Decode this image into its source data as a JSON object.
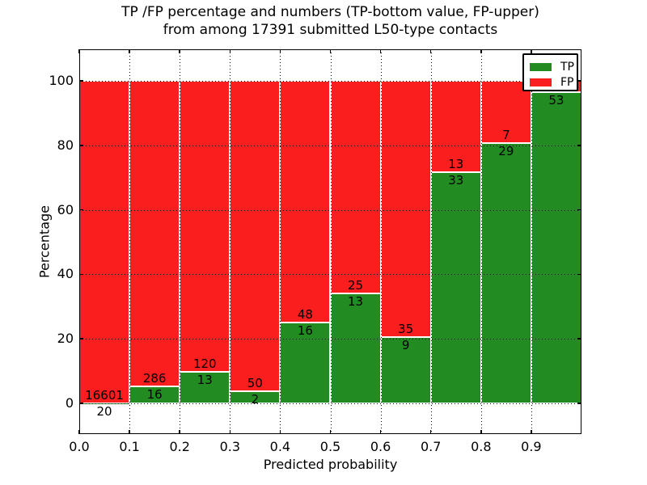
{
  "title": {
    "line1": "TP /FP percentage and numbers (TP-bottom value, FP-upper)",
    "line2": "from among 17391 submitted L50-type contacts"
  },
  "chart_data": {
    "type": "bar",
    "subtype": "stacked-percentage-histogram",
    "title": "TP /FP percentage and numbers (TP-bottom value, FP-upper) from among 17391 submitted L50-type contacts",
    "xlabel": "Predicted probability",
    "ylabel": "Percentage",
    "x_tick_labels": [
      "0.0",
      "0.1",
      "0.2",
      "0.3",
      "0.4",
      "0.5",
      "0.6",
      "0.7",
      "0.8",
      "0.9"
    ],
    "y_tick_values": [
      0,
      20,
      40,
      60,
      80,
      100
    ],
    "y_tick_labels": [
      "0",
      "20",
      "40",
      "60",
      "80",
      "100"
    ],
    "xlim": [
      0.0,
      1.0
    ],
    "ylim": [
      0,
      100
    ],
    "bin_width": 0.1,
    "grid": true,
    "grid_style": "dotted",
    "legend_position": "upper right",
    "legend": [
      {
        "label": "TP",
        "series": "tp"
      },
      {
        "label": "FP",
        "series": "fp"
      }
    ],
    "bars": [
      {
        "bin": "0.0-0.1",
        "tp": 20,
        "fp": 16601,
        "tp_pct": 0.1
      },
      {
        "bin": "0.1-0.2",
        "tp": 16,
        "fp": 286,
        "tp_pct": 5.3
      },
      {
        "bin": "0.2-0.3",
        "tp": 13,
        "fp": 120,
        "tp_pct": 9.8
      },
      {
        "bin": "0.3-0.4",
        "tp": 2,
        "fp": 50,
        "tp_pct": 3.8
      },
      {
        "bin": "0.4-0.5",
        "tp": 16,
        "fp": 48,
        "tp_pct": 25.0
      },
      {
        "bin": "0.5-0.6",
        "tp": 13,
        "fp": 25,
        "tp_pct": 34.2
      },
      {
        "bin": "0.6-0.7",
        "tp": 9,
        "fp": 35,
        "tp_pct": 20.5
      },
      {
        "bin": "0.7-0.8",
        "tp": 33,
        "fp": 13,
        "tp_pct": 71.7
      },
      {
        "bin": "0.8-0.9",
        "tp": 29,
        "fp": 7,
        "tp_pct": 80.6
      },
      {
        "bin": "0.9-1.0",
        "tp": 53,
        "fp": null,
        "tp_pct": 96.4
      }
    ]
  },
  "colors": {
    "tp": "#228b22",
    "fp": "#fb1e1e",
    "grid": "#000000",
    "bar_edge": "#ffffff",
    "background": "#ffffff"
  }
}
